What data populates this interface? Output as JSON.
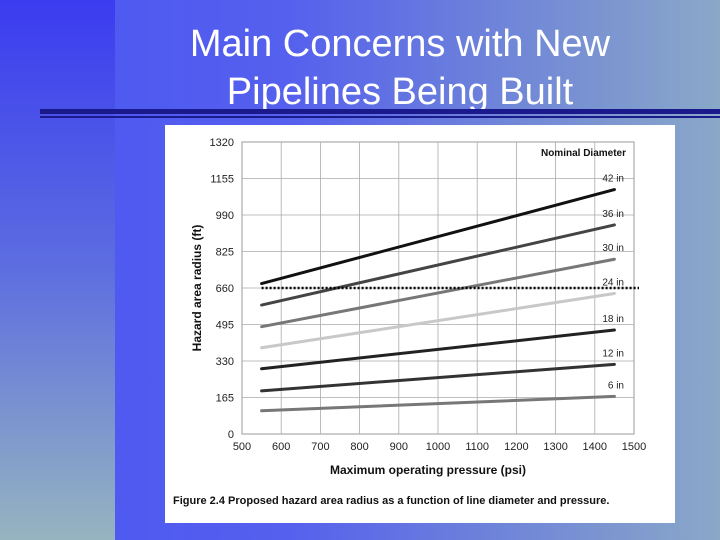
{
  "slide": {
    "title": "Main Concerns with New Pipelines Being Built"
  },
  "colors": {
    "background": "#5560ee",
    "title_text": "#ffffff",
    "rule": "#1a1a8c"
  },
  "chart_data": {
    "type": "line",
    "caption": "Figure 2.4  Proposed hazard area radius as a function of line diameter and pressure.",
    "xlabel": "Maximum operating pressure (psi)",
    "ylabel": "Hazard area radius (ft)",
    "legend_title": "Nominal Diameter",
    "legend_placement": "top-right",
    "grid": true,
    "xlim": [
      500,
      1500
    ],
    "ylim": [
      0,
      1320
    ],
    "x_ticks": [
      500,
      600,
      700,
      800,
      900,
      1000,
      1100,
      1200,
      1300,
      1400,
      1500
    ],
    "y_ticks": [
      0,
      165,
      330,
      495,
      660,
      825,
      990,
      1155,
      1320
    ],
    "reference_line": {
      "y": 660,
      "style": "dotted"
    },
    "series": [
      {
        "name": "42 in",
        "x": [
          550,
          1450
        ],
        "y": [
          680,
          1105
        ],
        "color": "#111111"
      },
      {
        "name": "36 in",
        "x": [
          550,
          1450
        ],
        "y": [
          583,
          945
        ],
        "color": "#444444"
      },
      {
        "name": "30 in",
        "x": [
          550,
          1450
        ],
        "y": [
          485,
          790
        ],
        "color": "#777777"
      },
      {
        "name": "24 in",
        "x": [
          550,
          1450
        ],
        "y": [
          390,
          635
        ],
        "color": "#c8c8c8"
      },
      {
        "name": "18 in",
        "x": [
          550,
          1450
        ],
        "y": [
          295,
          470
        ],
        "color": "#222222"
      },
      {
        "name": "12 in",
        "x": [
          550,
          1450
        ],
        "y": [
          195,
          315
        ],
        "color": "#333333"
      },
      {
        "name": "6 in",
        "x": [
          550,
          1450
        ],
        "y": [
          105,
          170
        ],
        "color": "#777777"
      }
    ]
  }
}
